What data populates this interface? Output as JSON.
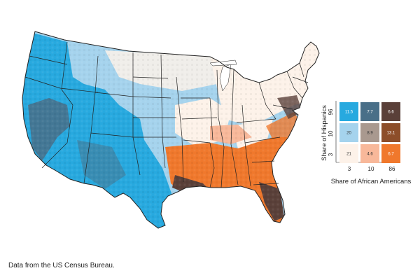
{
  "legend": {
    "y_axis_title": "Share of Hispanics",
    "x_axis_title": "Share of African Americans",
    "y_ticks": [
      "3",
      "10",
      "96"
    ],
    "x_ticks": [
      "3",
      "10",
      "86"
    ],
    "cells": [
      {
        "row": "top",
        "col": "left",
        "value": "11.5",
        "color": "#27a9df"
      },
      {
        "row": "top",
        "col": "middle",
        "value": "7.7",
        "color": "#496f88"
      },
      {
        "row": "top",
        "col": "right",
        "value": "6.6",
        "color": "#5a4039"
      },
      {
        "row": "middle",
        "col": "left",
        "value": "20",
        "color": "#a5d3ed"
      },
      {
        "row": "middle",
        "col": "middle",
        "value": "8.9",
        "color": "#a9998f"
      },
      {
        "row": "middle",
        "col": "right",
        "value": "13.1",
        "color": "#8d4e2a"
      },
      {
        "row": "bottom",
        "col": "left",
        "value": "21",
        "color": "#fdf2e9"
      },
      {
        "row": "bottom",
        "col": "middle",
        "value": "4.6",
        "color": "#f8b89a"
      },
      {
        "row": "bottom",
        "col": "right",
        "value": "6.7",
        "color": "#f0782c"
      }
    ]
  },
  "source_note": "Data from the US Census Bureau.",
  "colors": {
    "high_hispanic_low_black": "#27a9df",
    "mid_hispanic_low_black": "#a5d3ed",
    "low_hispanic_low_black": "#fdf2e9",
    "low_hispanic_high_black": "#f0782c",
    "high_both": "#5a4039",
    "state_border": "#222222"
  }
}
